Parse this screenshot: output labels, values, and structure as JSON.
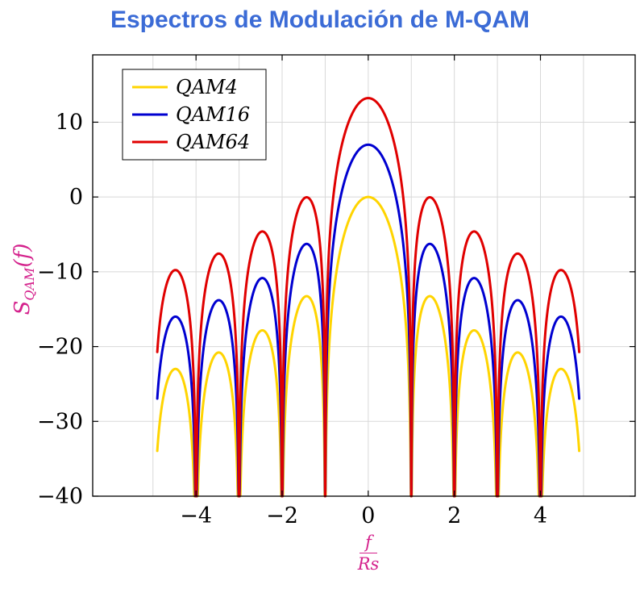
{
  "page": {
    "title": "Espectros de Modulación de M-QAM"
  },
  "colors": {
    "title": "#3B6BD6",
    "axis_label": "#D4218C",
    "grid": "#D8D8D8",
    "frame": "#000000",
    "background": "#FFFFFF"
  },
  "y_axis_label": {
    "main": "S",
    "sub": "QAM",
    "rest": "(f)"
  },
  "chart_data": {
    "type": "line",
    "title": "Espectros de Modulación de M-QAM",
    "xlabel_numerator": "f",
    "xlabel_denominator": "Rs",
    "ylabel": "S_QAM(f)",
    "xlim": [
      -6.4,
      6.2
    ],
    "ylim": [
      -40,
      19
    ],
    "x_data_range": [
      -4.9,
      4.9
    ],
    "x_ticks": [
      -4,
      -2,
      0,
      2,
      4
    ],
    "y_ticks": [
      -40,
      -30,
      -20,
      -10,
      0,
      10
    ],
    "grid": "both",
    "grid_x_lines": [
      -5,
      -4,
      -3,
      -2,
      -1,
      0,
      1,
      2,
      3,
      4,
      5
    ],
    "legend_position": "top-left",
    "function": "y(x) = 10*log10(sinc(x)^2) + offset_db, with sinc(x)=sin(pi*x)/(pi*x); nulls at every nonzero integer x clipped at y = -40 dB",
    "nulls_x": [
      -4,
      -3,
      -2,
      -1,
      1,
      2,
      3,
      4
    ],
    "lobe_peak_x": [
      0,
      1.43,
      2.46,
      3.47,
      4.48
    ],
    "series": [
      {
        "name": "QAM4",
        "color": "#FFD400",
        "offset_db": 0,
        "peak_db": 0,
        "lobe_peaks_db": [
          0,
          -13.3,
          -17.8,
          -20.8,
          -23.0
        ],
        "endpoint_db_at_4p9": -33.9
      },
      {
        "name": "QAM16",
        "color": "#0000D0",
        "offset_db": 6.99,
        "peak_db": 7.0,
        "lobe_peaks_db": [
          7.0,
          -6.3,
          -10.8,
          -13.8,
          -16.0
        ],
        "endpoint_db_at_4p9": -26.9
      },
      {
        "name": "QAM64",
        "color": "#E00000",
        "offset_db": 13.22,
        "peak_db": 13.2,
        "lobe_peaks_db": [
          13.2,
          -0.1,
          -4.6,
          -7.6,
          -9.8
        ],
        "endpoint_db_at_4p9": -20.7
      }
    ]
  }
}
